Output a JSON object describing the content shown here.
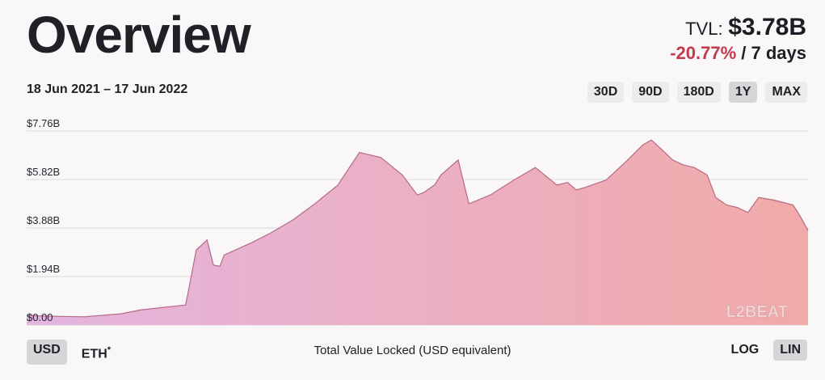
{
  "header": {
    "title": "Overview",
    "tvl_label": "TVL:",
    "tvl_value": "$3.78B",
    "change_value": "-20.77%",
    "change_period": "/ 7 days"
  },
  "date_range": "18 Jun 2021 – 17 Jun 2022",
  "range_buttons": [
    {
      "label": "30D",
      "active": false
    },
    {
      "label": "90D",
      "active": false
    },
    {
      "label": "180D",
      "active": false
    },
    {
      "label": "1Y",
      "active": true
    },
    {
      "label": "MAX",
      "active": false
    }
  ],
  "currency_buttons": {
    "usd": "USD",
    "eth": "ETH",
    "eth_mark": "*"
  },
  "scale_buttons": {
    "log": "LOG",
    "lin": "LIN"
  },
  "caption": "Total Value Locked (USD equivalent)",
  "watermark": "L2BEAT",
  "colors": {
    "negative": "#c2394a",
    "gradient_start": "#e4b5df",
    "gradient_end": "#f1aaa8",
    "line": "#b66a86"
  },
  "chart_data": {
    "type": "area",
    "title": "",
    "xlabel": "",
    "ylabel": "",
    "x_range": [
      "2021-06-18",
      "2022-06-17"
    ],
    "ylim": [
      0,
      7.76
    ],
    "y_unit": "$B",
    "y_ticks": [
      "$0.00",
      "$1.94B",
      "$3.88B",
      "$5.82B",
      "$7.76B"
    ],
    "grid": true,
    "x": [
      "2021-06-18",
      "2021-07-01",
      "2021-07-15",
      "2021-08-01",
      "2021-08-10",
      "2021-08-20",
      "2021-08-31",
      "2021-09-01",
      "2021-09-05",
      "2021-09-10",
      "2021-09-13",
      "2021-09-16",
      "2021-09-18",
      "2021-10-01",
      "2021-10-10",
      "2021-10-20",
      "2021-10-31",
      "2021-11-10",
      "2021-11-20",
      "2021-11-30",
      "2021-12-10",
      "2021-12-17",
      "2021-12-20",
      "2021-12-25",
      "2021-12-28",
      "2022-01-05",
      "2022-01-10",
      "2022-01-20",
      "2022-01-31",
      "2022-02-10",
      "2022-02-20",
      "2022-02-25",
      "2022-03-01",
      "2022-03-05",
      "2022-03-15",
      "2022-03-25",
      "2022-04-01",
      "2022-04-05",
      "2022-04-10",
      "2022-04-15",
      "2022-04-20",
      "2022-04-25",
      "2022-05-01",
      "2022-05-05",
      "2022-05-10",
      "2022-05-15",
      "2022-05-20",
      "2022-05-25",
      "2022-06-01",
      "2022-06-10",
      "2022-06-13",
      "2022-06-17"
    ],
    "series": [
      {
        "values": [
          0.38,
          0.35,
          0.33,
          0.45,
          0.6,
          0.7,
          0.8,
          1.2,
          3.0,
          3.4,
          2.4,
          2.35,
          2.8,
          3.3,
          3.7,
          4.2,
          4.9,
          5.6,
          6.9,
          6.7,
          6.0,
          5.2,
          5.3,
          5.6,
          6.0,
          6.6,
          4.85,
          5.2,
          5.8,
          6.3,
          5.6,
          5.7,
          5.4,
          5.5,
          5.8,
          6.6,
          7.2,
          7.4,
          7.0,
          6.6,
          6.4,
          6.3,
          6.0,
          5.1,
          4.8,
          4.7,
          4.5,
          5.1,
          5.0,
          4.8,
          4.4,
          3.78
        ]
      }
    ]
  }
}
